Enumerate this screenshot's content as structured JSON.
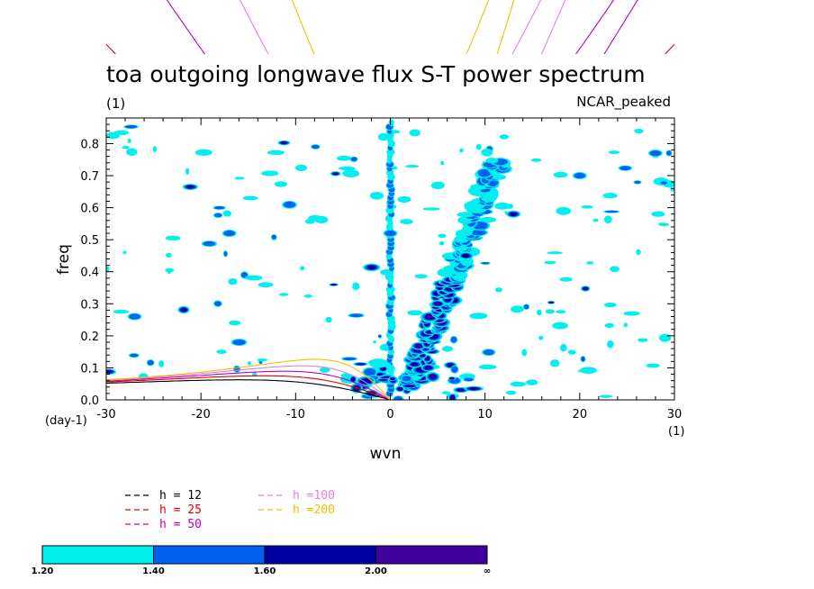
{
  "chart_data": {
    "type": "heatmap",
    "title": "toa outgoing longwave flux S-T power spectrum",
    "units_label": "(1)",
    "model_label": "NCAR_peaked",
    "xlabel": "wvn",
    "ylabel": "freq",
    "x_units": "(1)",
    "y_units": "(day-1)",
    "xlim": [
      -30,
      30
    ],
    "ylim": [
      0,
      0.88
    ],
    "xticks": [
      -30,
      -20,
      -10,
      0,
      10,
      20,
      30
    ],
    "xtick_labels": [
      "-30",
      "-20",
      "-10",
      "0",
      "10",
      "20",
      "30"
    ],
    "yticks": [
      0,
      0.1,
      0.2,
      0.3,
      0.4,
      0.5,
      0.6,
      0.7,
      0.8
    ],
    "ytick_labels": [
      "0.0",
      "0.1",
      "0.2",
      "0.3",
      "0.4",
      "0.5",
      "0.6",
      "0.7",
      "0.8"
    ],
    "dispersion_curves": [
      {
        "label": "h = 12",
        "h": 12,
        "color": "#000000"
      },
      {
        "label": "h = 25",
        "h": 25,
        "color": "#e00000"
      },
      {
        "label": "h = 50",
        "h": 50,
        "color": "#c000c0"
      },
      {
        "label": "h =100",
        "h": 100,
        "color": "#e080e0"
      },
      {
        "label": "h =200",
        "h": 200,
        "color": "#f0c000"
      }
    ],
    "colorbar": {
      "levels": [
        "1.20",
        "1.40",
        "1.60",
        "2.00",
        "∞"
      ],
      "colors": [
        "#00f0f0",
        "#0060f0",
        "#0000a0",
        "#4000a0"
      ]
    },
    "patches": [
      {
        "x": 0,
        "y": 0.52,
        "level": 1,
        "note": "vertical band at wvn 0"
      },
      {
        "x": 5,
        "y": 0.3,
        "level": 3
      },
      {
        "x": 4,
        "y": 0.1,
        "level": 3
      },
      {
        "x": 8,
        "y": 0.45,
        "level": 2
      },
      {
        "x": 13,
        "y": 0.58,
        "level": 2
      },
      {
        "x": -2,
        "y": 0.02,
        "level": 3
      },
      {
        "x": -27,
        "y": 0.26,
        "level": 1
      },
      {
        "x": -17,
        "y": 0.52,
        "level": 1
      },
      {
        "x": 28,
        "y": 0.77,
        "level": 1
      },
      {
        "x": 20,
        "y": 0.7,
        "level": 1
      }
    ]
  }
}
